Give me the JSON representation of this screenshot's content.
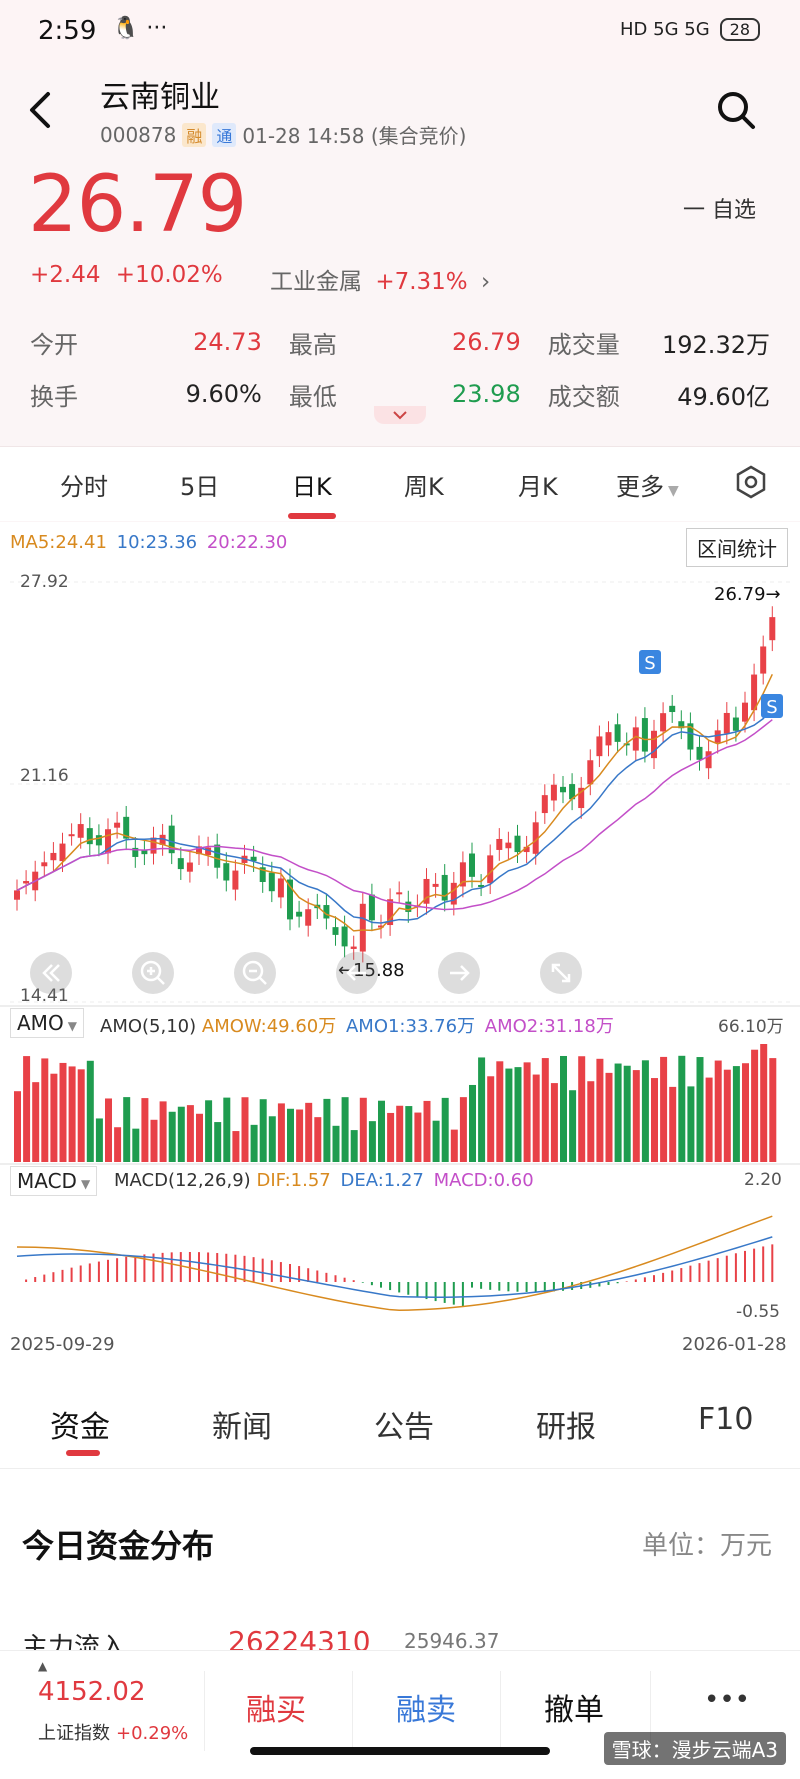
{
  "status": {
    "time": "2:59",
    "signal": "HD 5G 5G",
    "battery": "28"
  },
  "header": {
    "title": "云南铜业",
    "code": "000878",
    "tag_rong": "融",
    "tag_tong": "通",
    "datetime": "01-28 14:58 (集合竞价)"
  },
  "quote": {
    "price": "26.79",
    "watch": "一 自选",
    "change": "+2.44",
    "change_pct": "+10.02%",
    "sector": "工业金属",
    "sector_pct": "+7.31%",
    "rows": [
      {
        "l1": "今开",
        "v1": "24.73",
        "l2": "最高",
        "v2": "26.79",
        "l3": "成交量",
        "v3": "192.32万"
      },
      {
        "l1": "换手",
        "v1": "9.60%",
        "l2": "最低",
        "v2": "23.98",
        "l3": "成交额",
        "v3": "49.60亿"
      }
    ]
  },
  "tabs": [
    "分时",
    "5日",
    "日K",
    "周K",
    "月K",
    "更多"
  ],
  "chart": {
    "ma": {
      "ma5": "MA5:24.41",
      "ma10": "10:23.36",
      "ma20": "20:22.30"
    },
    "stats_button": "区间统计",
    "y_high": "27.92",
    "y_mid": "21.16",
    "y_low": "14.41",
    "last_label": "26.79→",
    "low_label": "←15.88",
    "s_marker": "S",
    "amo": {
      "selector": "AMO",
      "params": "AMO(5,10)",
      "amow": "AMOW:49.60万",
      "amo1": "AMO1:33.76万",
      "amo2": "AMO2:31.18万",
      "max": "66.10万"
    },
    "macd": {
      "selector": "MACD",
      "params": "MACD(12,26,9)",
      "dif": "DIF:1.57",
      "dea": "DEA:1.27",
      "macd": "MACD:0.60",
      "max": "2.20",
      "min": "-0.55"
    },
    "date_start": "2025-09-29",
    "date_end": "2026-01-28",
    "colors": {
      "up": "#e84147",
      "down": "#1f9c4f",
      "ma5": "#d88a1f",
      "ma10": "#3878c8",
      "ma20": "#c34fc8"
    }
  },
  "bottom_tabs": [
    "资金",
    "新闻",
    "公告",
    "研报",
    "F10"
  ],
  "funds": {
    "title": "今日资金分布",
    "unit": "单位：万元",
    "row_label": "主力流入",
    "row_value": "26224310",
    "row_value2": "25946.37"
  },
  "index": {
    "value": "4152.02",
    "name": "上证指数",
    "pct": "+0.29%"
  },
  "actions": {
    "buy": "融买",
    "sell": "融卖",
    "cancel": "撤单",
    "more": "•••"
  },
  "watermark": "雪球：漫步云端A3"
}
